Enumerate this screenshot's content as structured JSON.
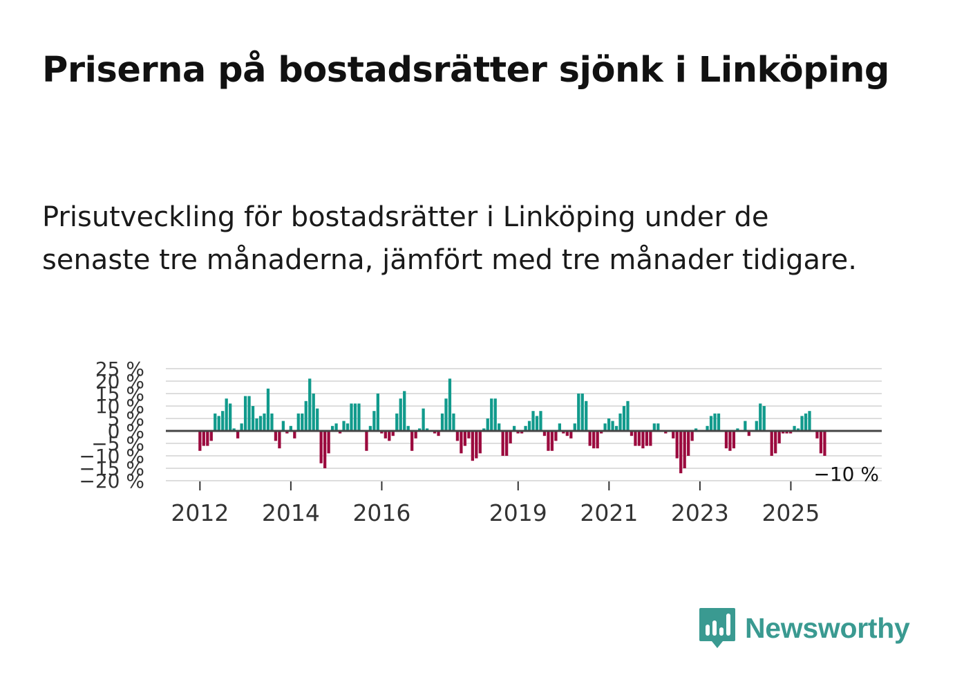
{
  "title": "Priserna på bostadsrätter sjönk i Linköping",
  "subtitle": "Prisutveckling för bostadsrätter i Linköping under de senaste tre månaderna, jämfört med tre månader tidigare.",
  "brand": {
    "name": "Newsworthy",
    "icon": "newsworthy-logo-icon"
  },
  "colors": {
    "positive": "#119a8c",
    "negative": "#9b0a3e",
    "grid": "#dddddd",
    "baseline": "#444444",
    "text": "#333333",
    "brand": "#3a9a91"
  },
  "chart_data": {
    "type": "bar",
    "title": "",
    "xlabel": "",
    "ylabel": "",
    "y_range": [
      -20,
      25
    ],
    "y_ticks": [
      25,
      20,
      15,
      10,
      5,
      0,
      -5,
      -10,
      -15,
      -20
    ],
    "y_tick_labels": [
      "25 %",
      "20 %",
      "15 %",
      "10 %",
      "5 %",
      "0 %",
      "−5 %",
      "−10 %",
      "−15 %",
      "−20 %"
    ],
    "x_tick_labels": [
      "2012",
      "2014",
      "2016",
      "2019",
      "2021",
      "2023",
      "2025"
    ],
    "x_tick_positions": [
      2012.0,
      2014.0,
      2016.0,
      2019.0,
      2021.0,
      2023.0,
      2025.0
    ],
    "x_range": [
      2011.25,
      2027.0
    ],
    "bar_start": 2012.0,
    "bar_step": 0.0833,
    "last_value_label": "−10 %",
    "values": [
      -8,
      -6,
      -6,
      -4,
      7,
      6,
      8,
      13,
      11,
      1,
      -3,
      3,
      14,
      14,
      10,
      5,
      6,
      7,
      17,
      7,
      -4,
      -7,
      4,
      -1,
      2,
      -3,
      7,
      7,
      12,
      21,
      15,
      9,
      -13,
      -15,
      -9,
      2,
      3,
      -1,
      4,
      3,
      11,
      11,
      11,
      0,
      -8,
      2,
      8,
      15,
      -1,
      -3,
      -4,
      -2,
      7,
      13,
      16,
      2,
      -8,
      -3,
      1,
      9,
      1,
      0,
      -1,
      -2,
      7,
      13,
      21,
      7,
      -4,
      -9,
      -6,
      -3,
      -12,
      -11,
      -9,
      1,
      5,
      13,
      13,
      3,
      -10,
      -10,
      -5,
      2,
      -1,
      -1,
      2,
      4,
      8,
      6,
      8,
      -2,
      -8,
      -8,
      -4,
      3,
      -1,
      -2,
      -3,
      3,
      15,
      15,
      12,
      -6,
      -7,
      -7,
      -1,
      3,
      5,
      4,
      2,
      7,
      10,
      12,
      -2,
      -6,
      -6,
      -7,
      -6,
      -6,
      3,
      3,
      0,
      -1,
      0,
      -3,
      -11,
      -17,
      -15,
      -10,
      -4,
      1,
      0,
      0,
      2,
      6,
      7,
      7,
      0,
      -7,
      -8,
      -7,
      1,
      0,
      4,
      -2,
      0,
      4,
      11,
      10,
      0,
      -10,
      -9,
      -5,
      -1,
      -1,
      -1,
      2,
      1,
      6,
      7,
      8,
      0,
      -3,
      -9,
      -10
    ]
  }
}
